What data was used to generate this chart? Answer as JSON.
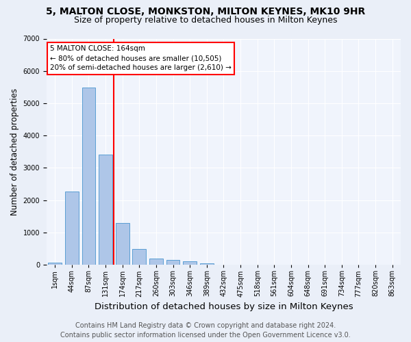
{
  "title1": "5, MALTON CLOSE, MONKSTON, MILTON KEYNES, MK10 9HR",
  "title2": "Size of property relative to detached houses in Milton Keynes",
  "xlabel": "Distribution of detached houses by size in Milton Keynes",
  "ylabel": "Number of detached properties",
  "footer1": "Contains HM Land Registry data © Crown copyright and database right 2024.",
  "footer2": "Contains public sector information licensed under the Open Government Licence v3.0.",
  "categories": [
    "1sqm",
    "44sqm",
    "87sqm",
    "131sqm",
    "174sqm",
    "217sqm",
    "260sqm",
    "303sqm",
    "346sqm",
    "389sqm",
    "432sqm",
    "475sqm",
    "518sqm",
    "561sqm",
    "604sqm",
    "648sqm",
    "691sqm",
    "734sqm",
    "777sqm",
    "820sqm",
    "863sqm"
  ],
  "values": [
    75,
    2280,
    5480,
    3420,
    1300,
    490,
    205,
    160,
    100,
    55,
    0,
    0,
    0,
    0,
    0,
    0,
    0,
    0,
    0,
    0,
    0
  ],
  "bar_color": "#aec6e8",
  "bar_edge_color": "#5a9fd4",
  "vline_x": 3.5,
  "vline_color": "red",
  "annotation_line1": "5 MALTON CLOSE: 164sqm",
  "annotation_line2": "← 80% of detached houses are smaller (10,505)",
  "annotation_line3": "20% of semi-detached houses are larger (2,610) →",
  "ylim": [
    0,
    7000
  ],
  "yticks": [
    0,
    1000,
    2000,
    3000,
    4000,
    5000,
    6000,
    7000
  ],
  "bg_color": "#eaeff8",
  "plot_bg_color": "#f0f4fc",
  "title1_fontsize": 10,
  "title2_fontsize": 9,
  "xlabel_fontsize": 9.5,
  "ylabel_fontsize": 8.5,
  "tick_fontsize": 7,
  "footer_fontsize": 7,
  "ann_fontsize": 7.5
}
